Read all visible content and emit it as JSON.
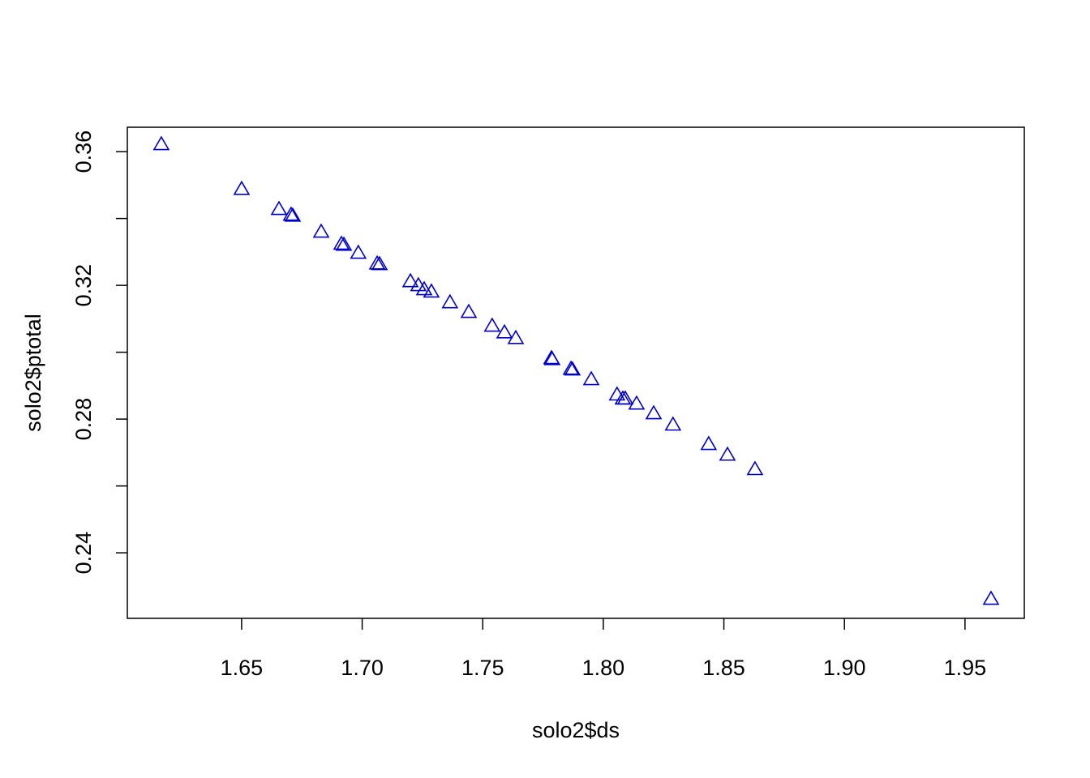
{
  "chart_data": {
    "type": "scatter",
    "x_label": "solo2$ds",
    "y_label": "solo2$ptotal",
    "color": "#0000cc",
    "marker": "triangle",
    "xlim": [
      1.6026,
      1.9746
    ],
    "ylim": [
      0.2204,
      0.3673
    ],
    "xticks": [
      1.65,
      {
        "value": 1.7,
        "label": "1.70"
      },
      1.75,
      {
        "value": 1.8,
        "label": "1.80"
      },
      1.85,
      {
        "value": 1.9,
        "label": "1.90"
      },
      1.95
    ],
    "yticks": [
      0.24,
      {
        "value": 0.26,
        "label": null
      },
      0.28,
      {
        "value": 0.3,
        "label": null
      },
      0.32,
      {
        "value": 0.34,
        "label": null
      },
      0.36
    ],
    "x": [
      1.6167,
      1.65,
      1.6655,
      1.6705,
      1.6712,
      1.683,
      1.6914,
      1.6924,
      1.6984,
      1.7062,
      1.7072,
      1.72,
      1.7233,
      1.7257,
      1.7287,
      1.7364,
      1.7442,
      1.7539,
      1.759,
      1.7637,
      1.7785,
      1.7788,
      1.7866,
      1.7872,
      1.795,
      1.8057,
      1.8081,
      1.8091,
      1.8138,
      1.8209,
      1.8289,
      1.8437,
      1.8515,
      1.8629,
      1.9608
    ],
    "values": [
      0.3622,
      0.3488,
      0.3428,
      0.3411,
      0.3408,
      0.336,
      0.3324,
      0.3321,
      0.3297,
      0.3265,
      0.3263,
      0.3212,
      0.32,
      0.3188,
      0.3181,
      0.3149,
      0.312,
      0.3079,
      0.3059,
      0.3042,
      0.2982,
      0.2979,
      0.295,
      0.2948,
      0.2919,
      0.2873,
      0.2861,
      0.2861,
      0.2846,
      0.2817,
      0.2783,
      0.2725,
      0.2693,
      0.265,
      0.2262
    ]
  }
}
